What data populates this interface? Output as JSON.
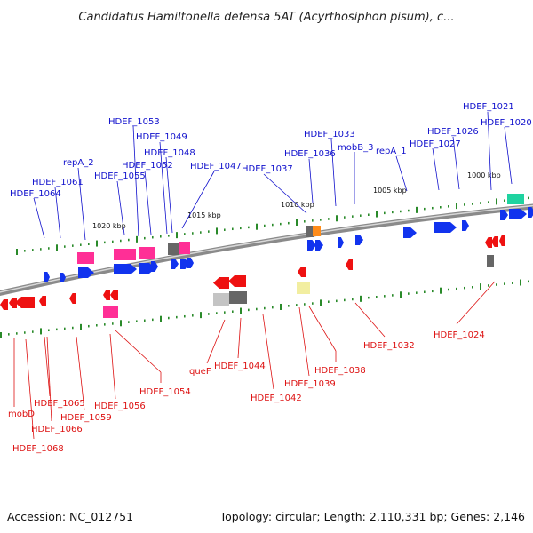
{
  "header": {
    "title": "Candidatus Hamiltonella defensa 5AT (Acyrthosiphon pisum), c..."
  },
  "footer": {
    "accession": "Accession: NC_012751",
    "topology": "Topology: circular; Length: 2,110,331 bp; Genes: 2,146"
  },
  "colors": {
    "forward_label": "#1010cc",
    "reverse_label": "#dd1111",
    "forward_gene": "#1133ee",
    "reverse_gene": "#ee1111",
    "backbone": "#8a8a8a",
    "tick": "#2a8a2a"
  },
  "scale": {
    "markers": [
      "1020 kbp",
      "1015 kbp",
      "1010 kbp",
      "1005 kbp",
      "1000 kbp"
    ]
  },
  "forward_labels": [
    "HDEF_1064",
    "HDEF_1061",
    "repA_2",
    "HDEF_1055",
    "HDEF_1053",
    "HDEF_1052",
    "HDEF_1049",
    "HDEF_1048",
    "HDEF_1047",
    "HDEF_1037",
    "HDEF_1036",
    "HDEF_1033",
    "mobB_3",
    "repA_1",
    "HDEF_1027",
    "HDEF_1026",
    "HDEF_1021",
    "HDEF_1020"
  ],
  "reverse_labels": [
    "mobD",
    "HDEF_1068",
    "HDEF_1065",
    "HDEF_1066",
    "HDEF_1059",
    "HDEF_1056",
    "HDEF_1054",
    "queF",
    "HDEF_1044",
    "HDEF_1042",
    "HDEF_1039",
    "HDEF_1038",
    "HDEF_1032",
    "HDEF_1024"
  ]
}
